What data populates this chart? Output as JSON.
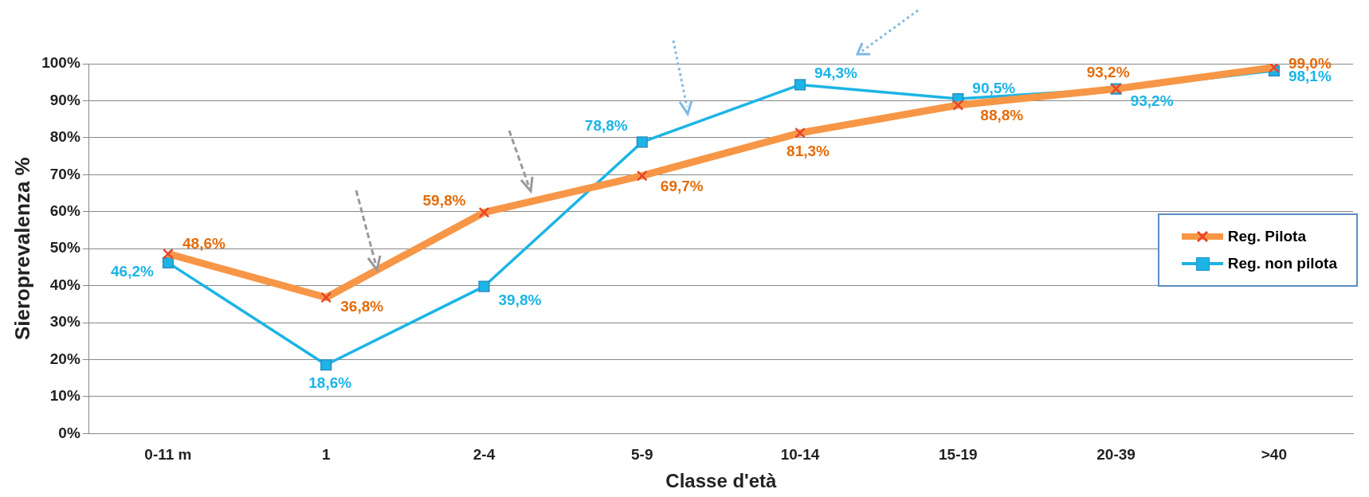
{
  "chart_data": {
    "type": "line",
    "xlabel": "Classe d'età",
    "ylabel": "Sieroprevalenza %",
    "categories": [
      "0-11 m",
      "1",
      "2-4",
      "5-9",
      "10-14",
      "15-19",
      "20-39",
      ">40"
    ],
    "series": [
      {
        "name": "Reg. Pilota",
        "color": "#f79646",
        "marker": "cross",
        "values": [
          48.6,
          36.8,
          59.8,
          69.7,
          81.3,
          88.8,
          93.2,
          99.0
        ],
        "value_labels": [
          "48,6%",
          "36,8%",
          "59,8%",
          "69,7%",
          "81,3%",
          "88,8%",
          "93,2%",
          "99,0%"
        ]
      },
      {
        "name": "Reg. non pilota",
        "color": "#1cb4e6",
        "marker": "square",
        "values": [
          46.2,
          18.6,
          39.8,
          78.8,
          94.3,
          90.5,
          93.2,
          98.1
        ],
        "value_labels": [
          "46,2%",
          "18,6%",
          "39,8%",
          "78,8%",
          "94,3%",
          "90,5%",
          "93,2%",
          "98,1%"
        ]
      }
    ],
    "ylim": [
      0,
      100
    ],
    "yticks": [
      {
        "value": 0,
        "label": "0%"
      },
      {
        "value": 10,
        "label": "10%"
      },
      {
        "value": 20,
        "label": "20%"
      },
      {
        "value": 30,
        "label": "30%"
      },
      {
        "value": 40,
        "label": "40%"
      },
      {
        "value": 50,
        "label": "50%"
      },
      {
        "value": 60,
        "label": "60%"
      },
      {
        "value": 70,
        "label": "70%"
      },
      {
        "value": 80,
        "label": "80%"
      },
      {
        "value": 90,
        "label": "90%"
      },
      {
        "value": 100,
        "label": "100%"
      }
    ],
    "grid": "y",
    "legend": "right",
    "line_style": "solid"
  }
}
